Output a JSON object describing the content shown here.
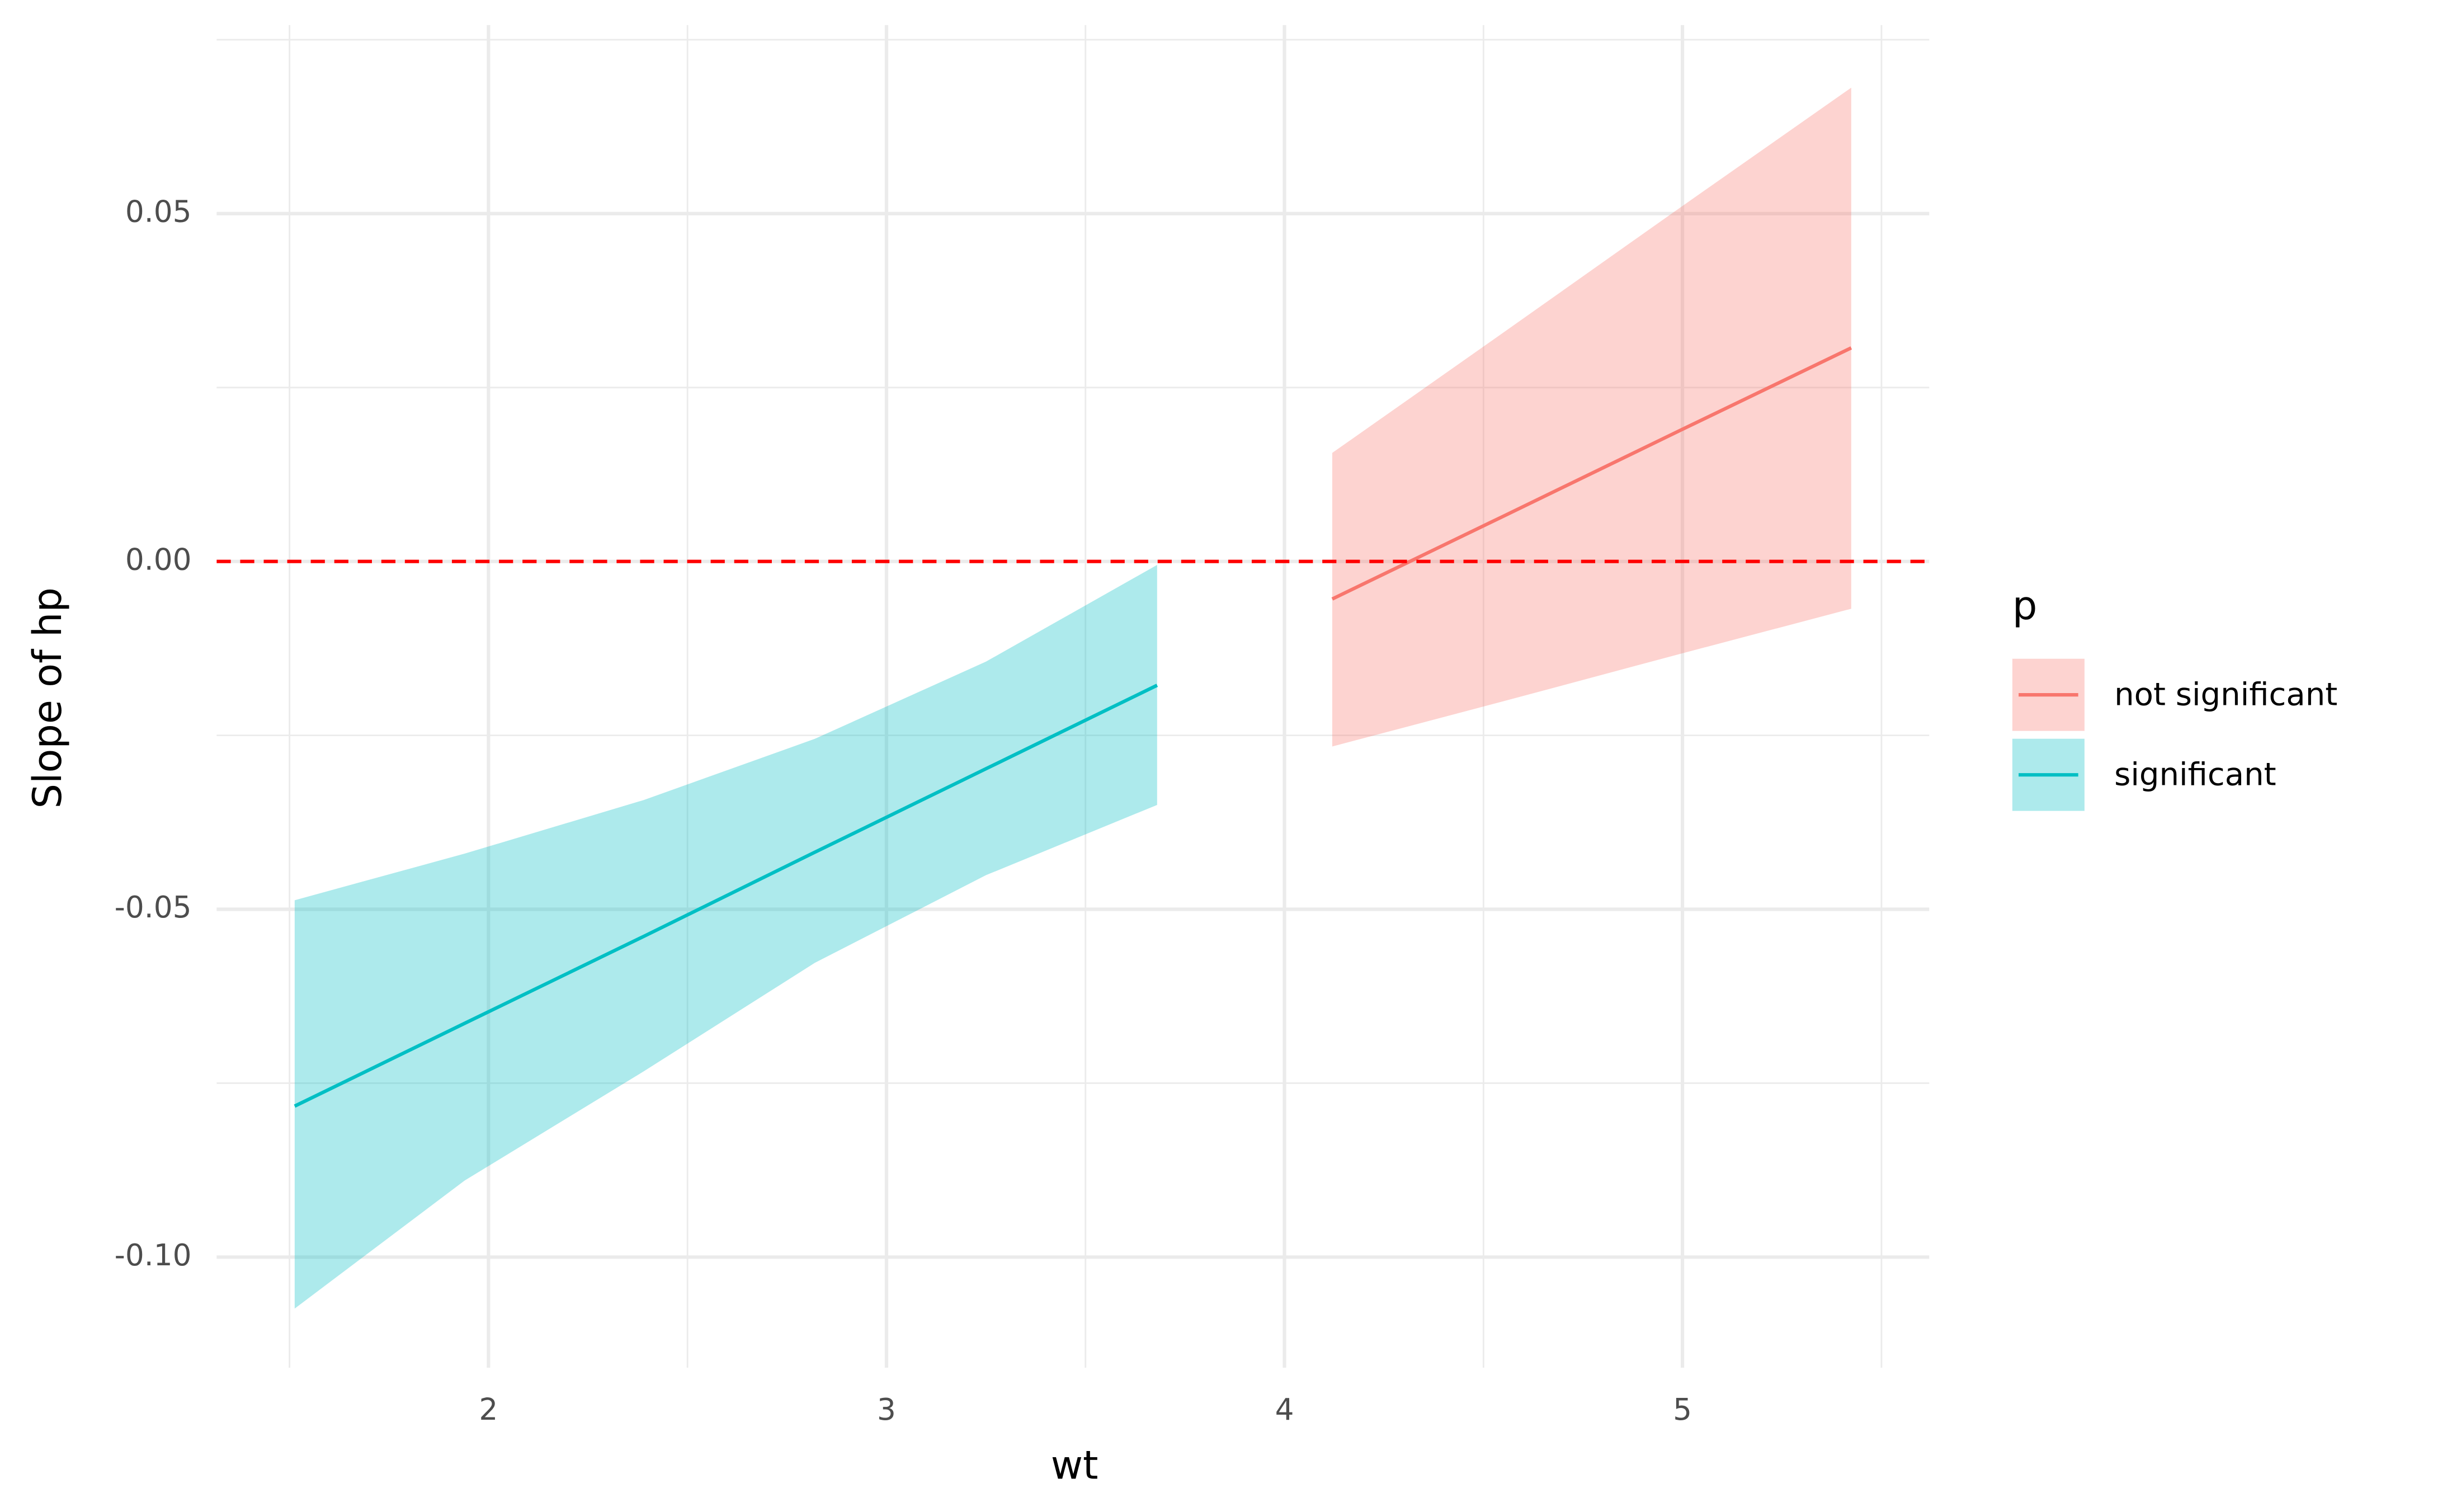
{
  "chart_data": {
    "type": "ribbon-line",
    "x_label": "wt",
    "y_label": "Slope of hp",
    "legend_title": "p",
    "xlim": [
      1.317,
      5.62
    ],
    "ylim": [
      -0.1159,
      0.0771
    ],
    "xticks": [
      2,
      3,
      4,
      5
    ],
    "yticks": [
      {
        "value": -0.1,
        "label": "-0.10"
      },
      {
        "value": -0.05,
        "label": "-0.05"
      },
      {
        "value": 0,
        "label": "0.00"
      },
      0.05
    ],
    "xminor": [
      1.5,
      2.5,
      3.5,
      4.5,
      5.5
    ],
    "yminor": [
      -0.075,
      -0.025,
      0.025,
      0.075
    ],
    "grid": true,
    "hline": 0,
    "hline_color": "#ff0000",
    "legend": "right",
    "series": [
      {
        "name": "not significant",
        "color": "#F8766D",
        "x": [
          4.12,
          4.55,
          5.0,
          5.424
        ],
        "values": [
          -0.0054,
          0.0065,
          0.019,
          0.0307
        ],
        "lower": [
          -0.0266,
          -0.0201,
          -0.0132,
          -0.0068
        ],
        "upper": [
          0.0156,
          0.0329,
          0.0511,
          0.0681
        ]
      },
      {
        "name": "significant",
        "color": "#00BFC4",
        "x": [
          1.513,
          1.94,
          2.39,
          2.82,
          3.25,
          3.68
        ],
        "values": [
          -0.0783,
          -0.0664,
          -0.0539,
          -0.0418,
          -0.0298,
          -0.0178
        ],
        "lower": [
          -0.1074,
          -0.089,
          -0.0733,
          -0.0577,
          -0.0451,
          -0.035
        ],
        "upper": [
          -0.0487,
          -0.042,
          -0.0343,
          -0.0255,
          -0.0144,
          -0.0005
        ]
      }
    ]
  }
}
